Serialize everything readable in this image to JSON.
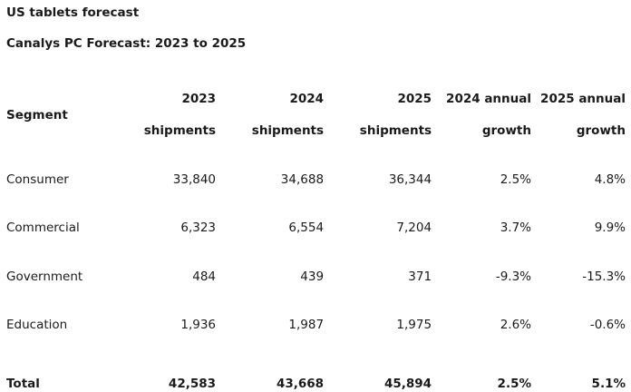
{
  "title": "US tablets forecast",
  "subtitle": "Canalys PC Forecast: 2023 to 2025",
  "table": {
    "headers": [
      {
        "line1": "Segment",
        "line2": ""
      },
      {
        "line1": "2023",
        "line2": "shipments"
      },
      {
        "line1": "2024",
        "line2": "shipments"
      },
      {
        "line1": "2025",
        "line2": "shipments"
      },
      {
        "line1": "2024 annual",
        "line2": "growth"
      },
      {
        "line1": "2025 annual",
        "line2": "growth"
      }
    ],
    "rows": [
      {
        "segment": "Consumer",
        "s2023": "33,840",
        "s2024": "34,688",
        "s2025": "36,344",
        "g2024": "2.5%",
        "g2025": "4.8%"
      },
      {
        "segment": "Commercial",
        "s2023": "6,323",
        "s2024": "6,554",
        "s2025": "7,204",
        "g2024": "3.7%",
        "g2025": "9.9%"
      },
      {
        "segment": "Government",
        "s2023": "484",
        "s2024": "439",
        "s2025": "371",
        "g2024": "-9.3%",
        "g2025": "-15.3%"
      },
      {
        "segment": "Education",
        "s2023": "1,936",
        "s2024": "1,987",
        "s2025": "1,975",
        "g2024": "2.6%",
        "g2025": "-0.6%"
      }
    ],
    "total": {
      "segment": "Total",
      "s2023": "42,583",
      "s2024": "43,668",
      "s2025": "45,894",
      "g2024": "2.5%",
      "g2025": "5.1%"
    }
  }
}
